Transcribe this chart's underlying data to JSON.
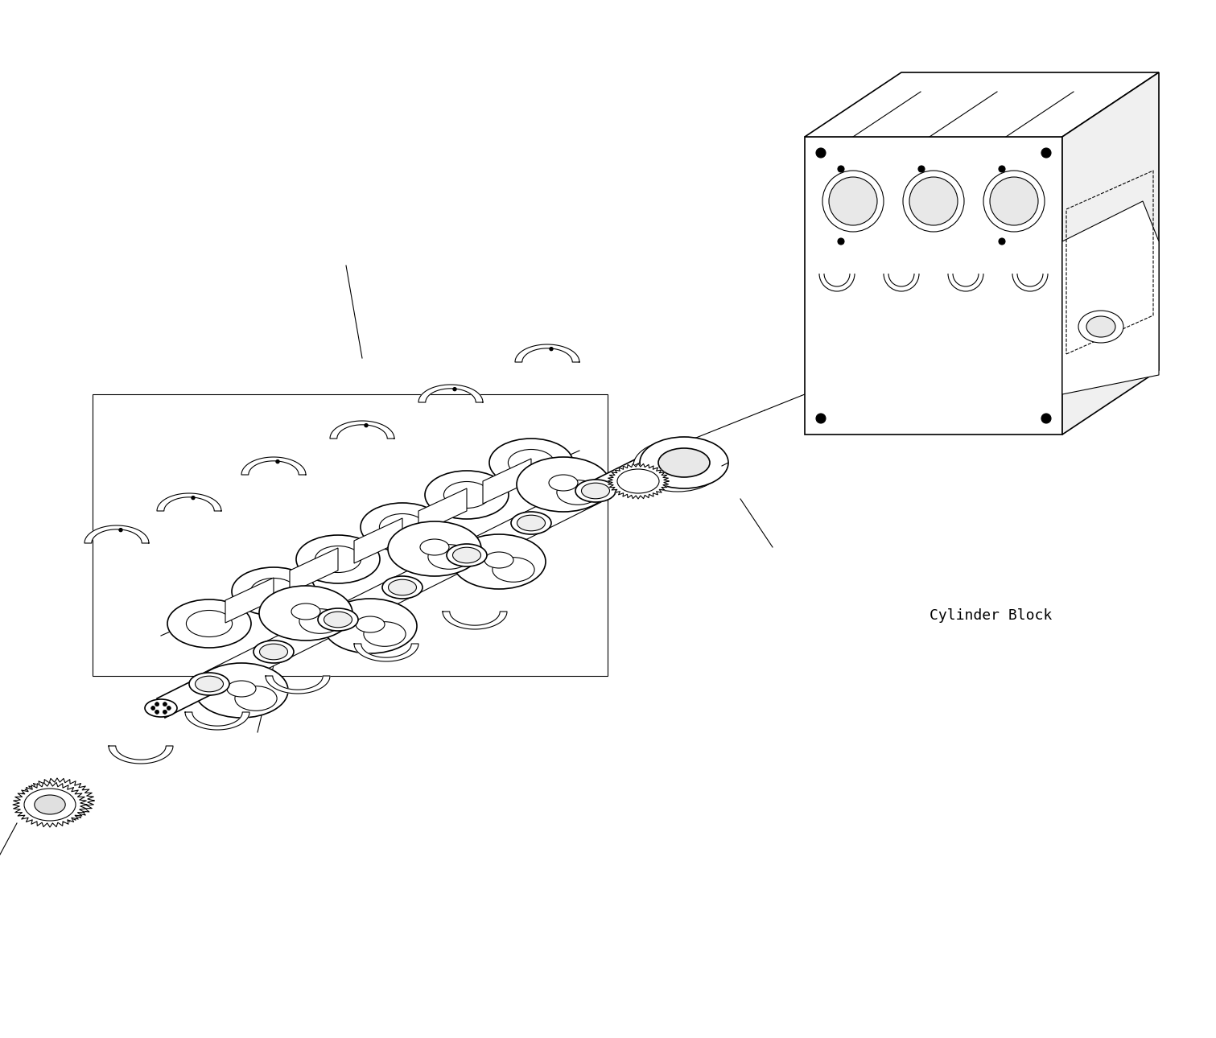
{
  "bg_color": "#ffffff",
  "line_color": "#000000",
  "label_cylinder_block": "Cylinder Block",
  "label_color": "#000000",
  "label_fontsize": 13,
  "label_font": "monospace",
  "figsize": [
    15.11,
    12.9
  ],
  "dpi": 100
}
